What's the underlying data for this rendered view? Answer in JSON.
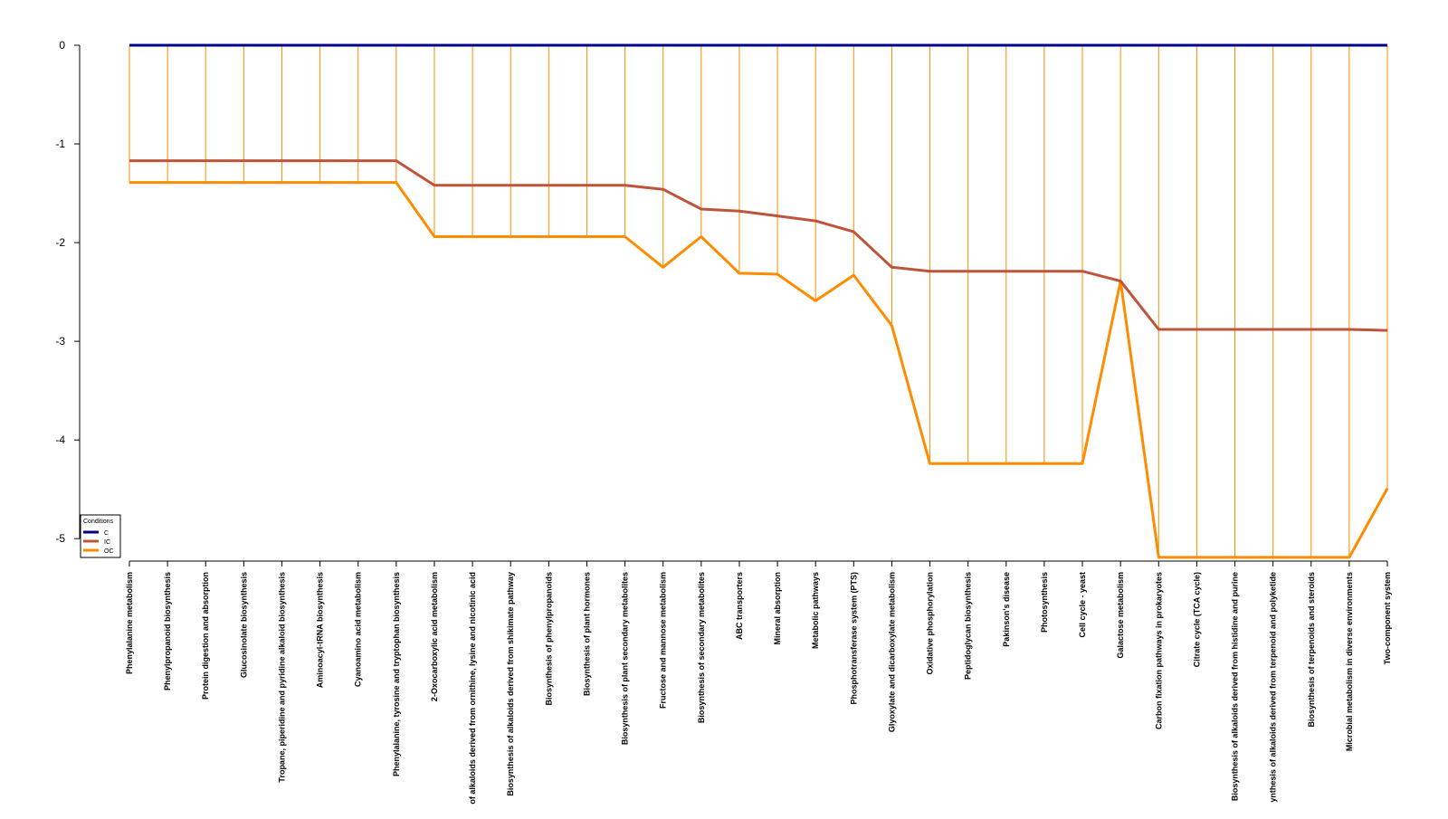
{
  "chart_data": {
    "type": "line",
    "title": "",
    "xlabel": "",
    "ylabel": "",
    "ylim": [
      -5.2,
      0
    ],
    "yticks": [
      0,
      -1,
      -2,
      -3,
      -4,
      -5
    ],
    "grid": false,
    "legend": {
      "title": "Conditions",
      "position": "bottom-left"
    },
    "categories": [
      "Phenylalanine metabolism",
      "Phenylpropanoid biosynthesis",
      "Protein digestion and absorption",
      "Glucosinolate biosynthesis",
      "Tropane, piperidine and pyridine alkaloid biosynthesis",
      "Aminoacyl-tRNA biosynthesis",
      "Cyanoamino acid metabolism",
      "Phenylalanine, tyrosine and tryptophan biosynthesis",
      "2-Oxocarboxylic acid metabolism",
      "of alkaloids derived from ornithine, lysine and nicotinic acid",
      "Biosynthesis of alkaloids derived from shikimate pathway",
      "Biosynthesis of phenylpropanoids",
      "Biosynthesis of plant hormones",
      "Biosynthesis of plant secondary metabolites",
      "Fructose and mannose metabolism",
      "Biosynthesis of secondary metabolites",
      "ABC transporters",
      "Mineral absorption",
      "Metabolic pathways",
      "Phosphotransferase system (PTS)",
      "Glyoxylate and dicarboxylate metabolism",
      "Oxidative phosphorylation",
      "Peptidoglycan biosynthesis",
      "Pakinson's disease",
      "Photosynthesis",
      "Cell cycle - yeast",
      "Galactose metabolism",
      "Carbon fixation pathways in prokaryotes",
      "Citrate cycle (TCA cycle)",
      "Biosynthesis of alkaloids derived from histidine and purine",
      "ynthesis of alkaloids derived from terpenoid and polyketide",
      "Biosynthesis of terpenoids and steroids",
      "Microbial metabolism in diverse environments",
      "Two-component system"
    ],
    "series": [
      {
        "name": "C",
        "color": "#00008B",
        "values": [
          0,
          0,
          0,
          0,
          0,
          0,
          0,
          0,
          0,
          0,
          0,
          0,
          0,
          0,
          0,
          0,
          0,
          0,
          0,
          0,
          0,
          0,
          0,
          0,
          0,
          0,
          0,
          0,
          0,
          0,
          0,
          0,
          0,
          0
        ]
      },
      {
        "name": "IC",
        "color": "#C0543B",
        "values": [
          -1.17,
          -1.17,
          -1.17,
          -1.17,
          -1.17,
          -1.17,
          -1.17,
          -1.17,
          -1.42,
          -1.42,
          -1.42,
          -1.42,
          -1.42,
          -1.42,
          -1.46,
          -1.66,
          -1.68,
          -1.73,
          -1.78,
          -1.89,
          -2.25,
          -2.29,
          -2.29,
          -2.29,
          -2.29,
          -2.29,
          -2.39,
          -2.88,
          -2.88,
          -2.88,
          -2.88,
          -2.88,
          -2.88,
          -2.89
        ]
      },
      {
        "name": "OC",
        "color": "#FF8C00",
        "values": [
          -1.39,
          -1.39,
          -1.39,
          -1.39,
          -1.39,
          -1.39,
          -1.39,
          -1.39,
          -1.94,
          -1.94,
          -1.94,
          -1.94,
          -1.94,
          -1.94,
          -2.25,
          -1.94,
          -2.31,
          -2.32,
          -2.59,
          -2.33,
          -2.84,
          -4.24,
          -4.24,
          -4.24,
          -4.24,
          -4.24,
          -2.39,
          -5.19,
          -5.19,
          -5.19,
          -5.19,
          -5.19,
          -5.19,
          -4.49
        ]
      }
    ]
  }
}
